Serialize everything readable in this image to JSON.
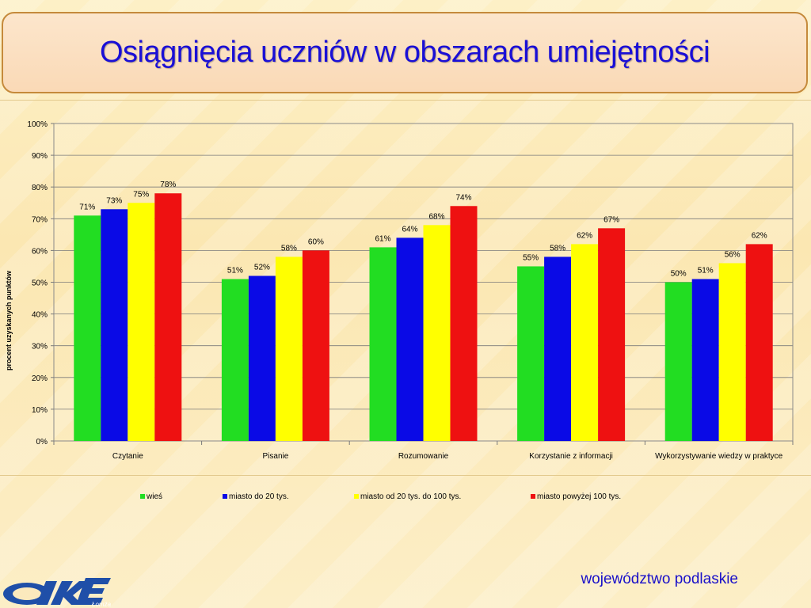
{
  "slide": {
    "title": "Osiągnięcia uczniów w obszarach umiejętności",
    "footer": "województwo podlaskie",
    "logo_text": "Łomża"
  },
  "chart_data": {
    "type": "bar",
    "ylabel": "procent uzyskanych punktów",
    "ylim": [
      0,
      100
    ],
    "yticks": [
      "0%",
      "10%",
      "20%",
      "30%",
      "40%",
      "50%",
      "60%",
      "70%",
      "80%",
      "90%",
      "100%"
    ],
    "grid": true,
    "legend_position": "bottom",
    "categories": [
      "Czytanie",
      "Pisanie",
      "Rozumowanie",
      "Korzystanie z informacji",
      "Wykorzystywanie wiedzy w praktyce"
    ],
    "series": [
      {
        "name": "wieś",
        "color": "#22dd22",
        "values": [
          71,
          51,
          61,
          55,
          50
        ],
        "labels": [
          "71%",
          "51%",
          "61%",
          "55%",
          "50%"
        ]
      },
      {
        "name": "miasto do 20 tys.",
        "color": "#0a0ae6",
        "values": [
          73,
          52,
          64,
          58,
          51
        ],
        "labels": [
          "73%",
          "52%",
          "64%",
          "58%",
          "51%"
        ]
      },
      {
        "name": "miasto od 20 tys. do 100 tys.",
        "color": "#ffff00",
        "values": [
          75,
          58,
          68,
          62,
          56
        ],
        "labels": [
          "75%",
          "58%",
          "68%",
          "62%",
          "56%"
        ]
      },
      {
        "name": "miasto powyżej 100 tys.",
        "color": "#ee1111",
        "values": [
          78,
          60,
          74,
          67,
          62
        ],
        "labels": [
          "78%",
          "60%",
          "74%",
          "67%",
          "62%"
        ]
      }
    ]
  }
}
